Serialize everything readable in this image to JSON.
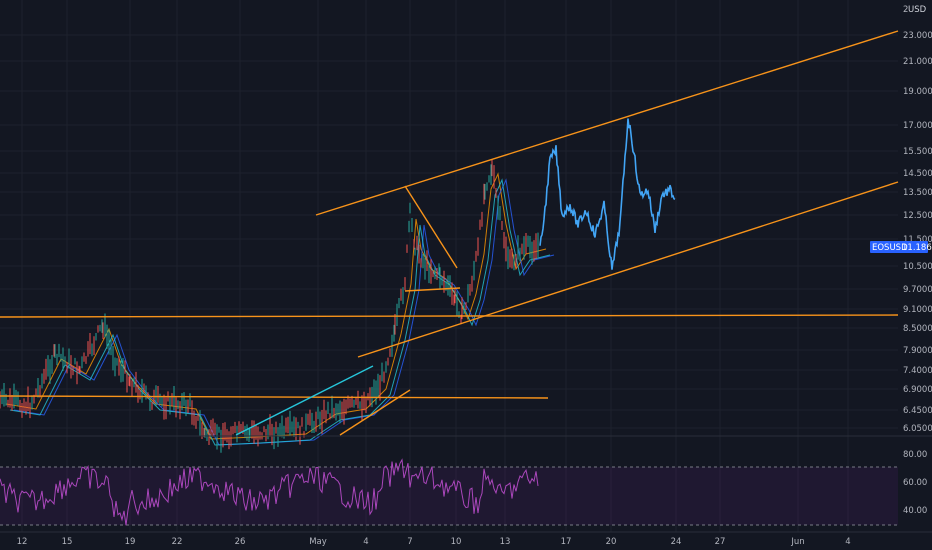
{
  "chart_data": {
    "type": "line",
    "title": "",
    "symbol_label": "EOSUSD",
    "currency_label": "USD",
    "current_price": "11.1864",
    "y_tick_labels": [
      "23.0000",
      "21.0000",
      "19.0000",
      "17.0000",
      "15.5000",
      "14.5000",
      "13.5000",
      "12.5000",
      "11.5000",
      "10.5000",
      "9.7000",
      "9.1000",
      "8.5000",
      "7.9000",
      "7.4000",
      "6.9000",
      "6.4500",
      "6.0500"
    ],
    "x_tick_labels": [
      "12",
      "15",
      "19",
      "22",
      "26",
      "May",
      "4",
      "7",
      "10",
      "13",
      "17",
      "20",
      "24",
      "27",
      "Jun",
      "4"
    ],
    "rsi_tick_labels": [
      "80.00",
      "60.00",
      "40.00"
    ],
    "rsi_levels": [
      70,
      30
    ],
    "series": [
      {
        "name": "EOSUSD",
        "values_x": [
          "Apr 10",
          "Apr 14",
          "Apr 17",
          "Apr 20",
          "Apr 23",
          "Apr 27",
          "Apr 30",
          "May 3",
          "May 5",
          "May 7",
          "May 9",
          "May 11",
          "May 13",
          "May 15",
          "May 17",
          "May 19",
          "May 21",
          "May 23"
        ],
        "values": [
          6.7,
          7.6,
          8.4,
          7.1,
          6.6,
          5.8,
          5.9,
          6.6,
          8.2,
          13.2,
          9.8,
          14.5,
          10.5,
          12.0,
          11.4,
          10.6,
          17.0,
          13.4
        ]
      }
    ],
    "grid": true
  },
  "price_tag": {
    "symbol": "EOSUSD",
    "value": "11.1864"
  },
  "corner_label": "2"
}
